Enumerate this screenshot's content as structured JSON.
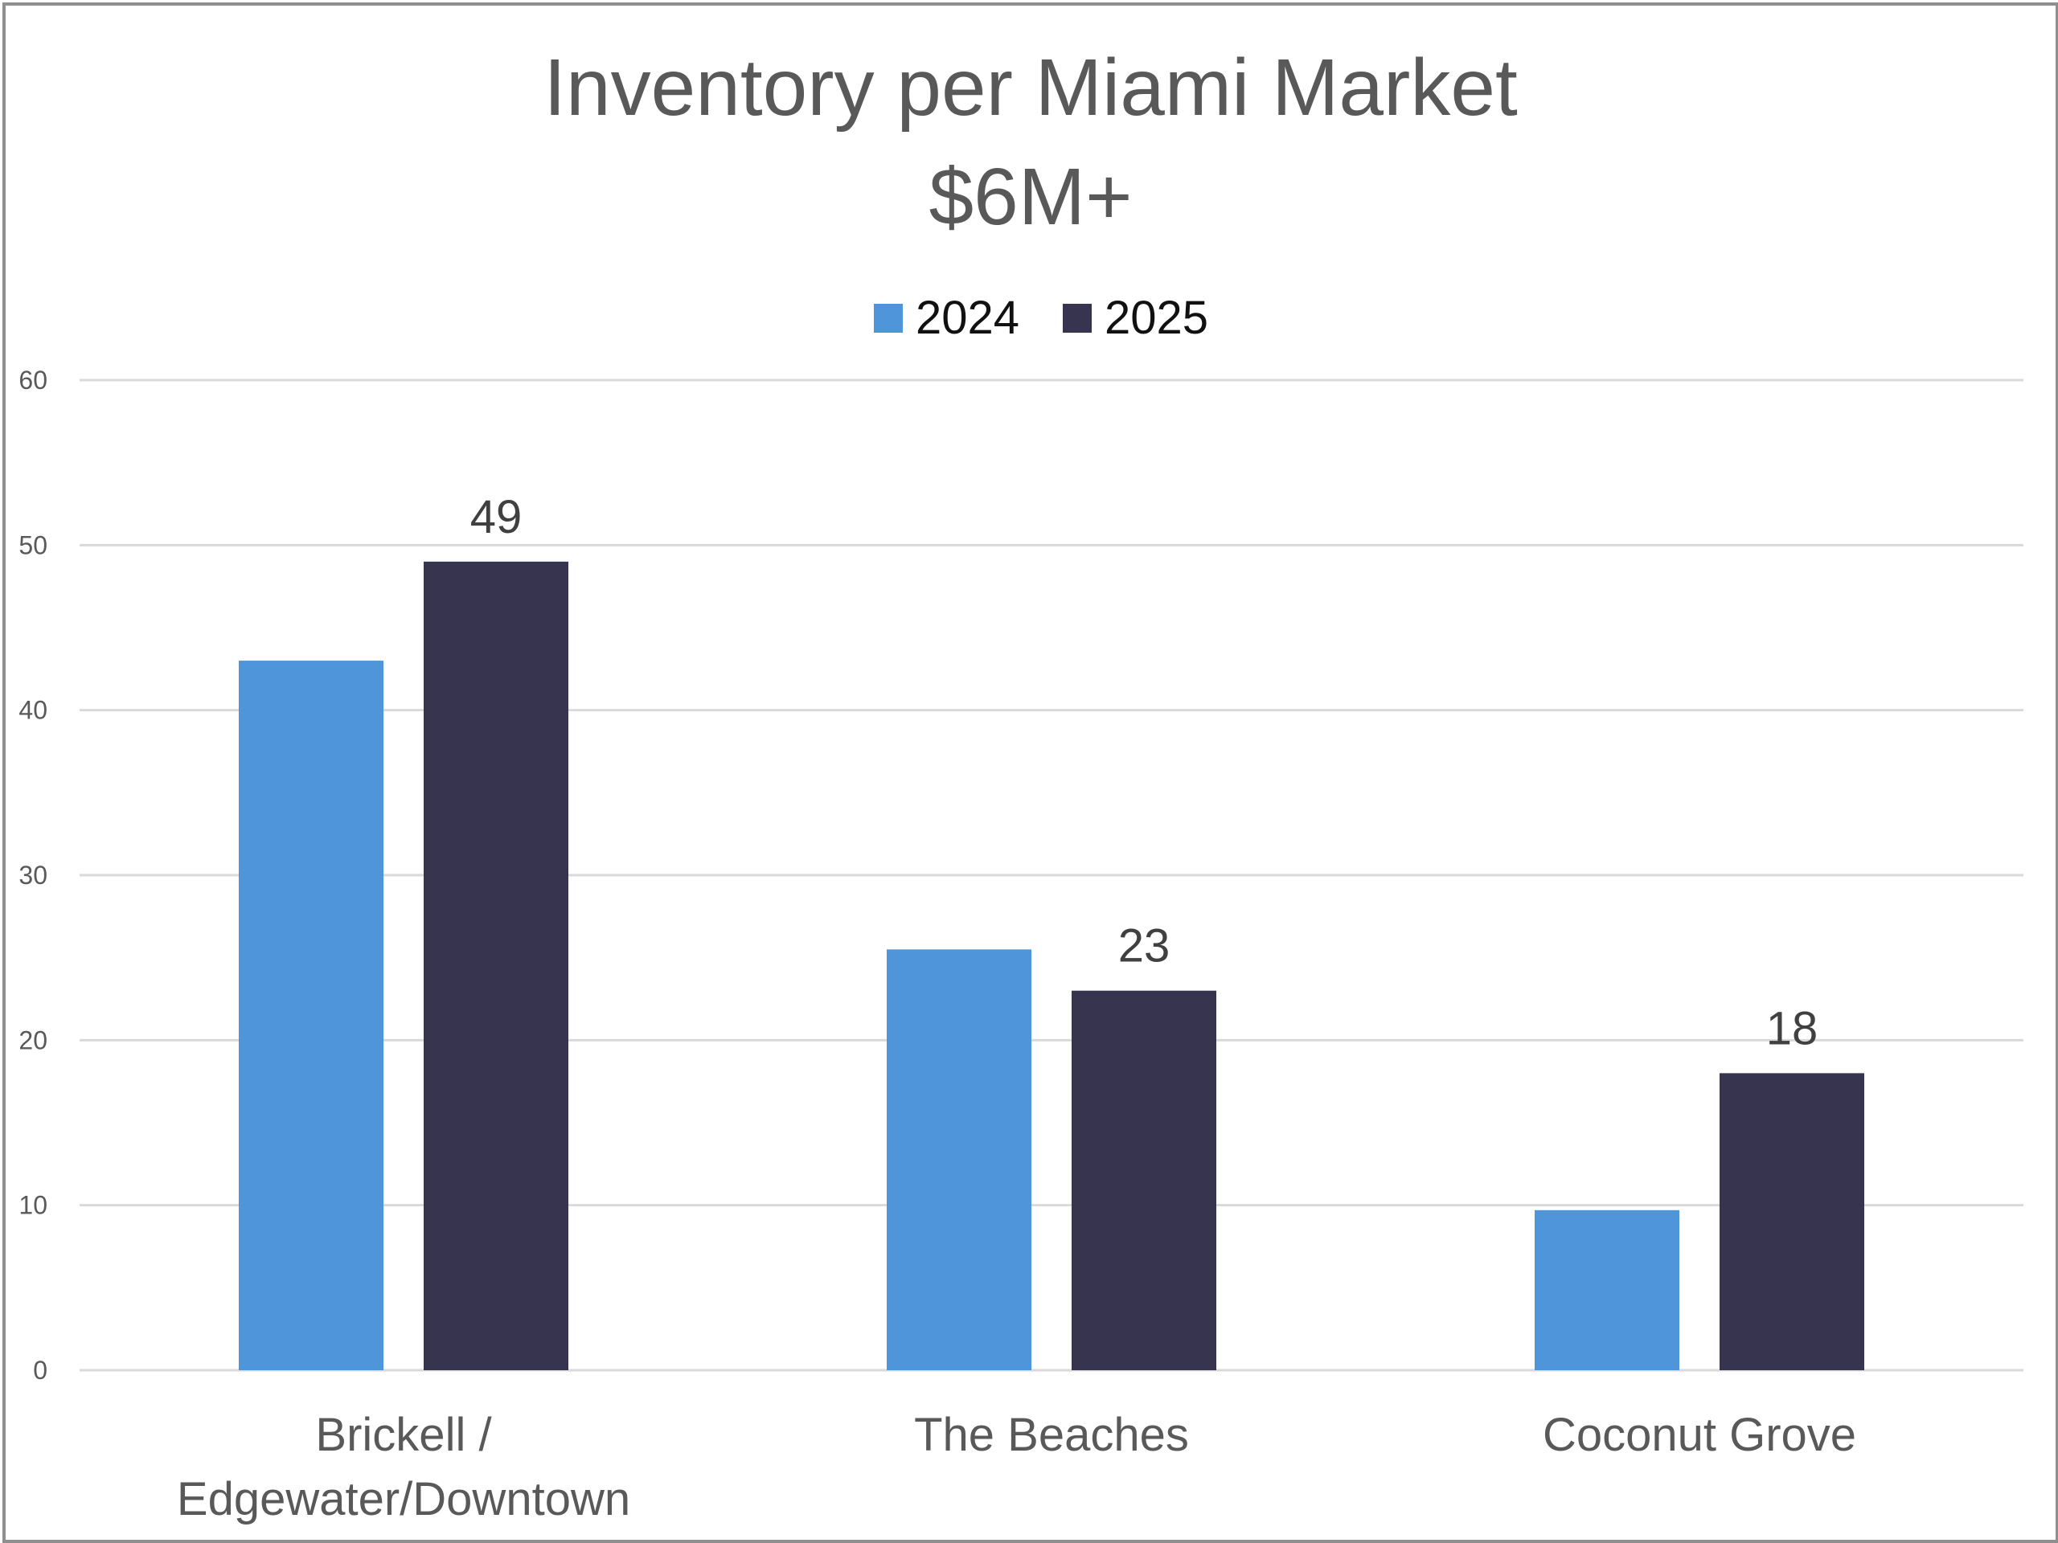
{
  "chart_data": {
    "type": "bar",
    "title": "Inventory per Miami Market",
    "subtitle": "$6M+",
    "categories": [
      "Brickell / Edgewater/Downtown",
      "The Beaches",
      "Coconut Grove"
    ],
    "category_lines": [
      [
        "Brickell /",
        "Edgewater/Downtown"
      ],
      [
        "The Beaches"
      ],
      [
        "Coconut Grove"
      ]
    ],
    "series": [
      {
        "name": "2024",
        "color": "#4f95d9",
        "values": [
          43,
          25.5,
          9.7
        ],
        "labels": [
          null,
          null,
          null
        ]
      },
      {
        "name": "2025",
        "color": "#36344f",
        "values": [
          49,
          23,
          18
        ],
        "labels": [
          "49",
          "23",
          "18"
        ]
      }
    ],
    "ylim": [
      0,
      60
    ],
    "yticks": [
      0,
      10,
      20,
      30,
      40,
      50,
      60
    ],
    "grid": true,
    "legend_position": "top",
    "xlabel": "",
    "ylabel": ""
  }
}
